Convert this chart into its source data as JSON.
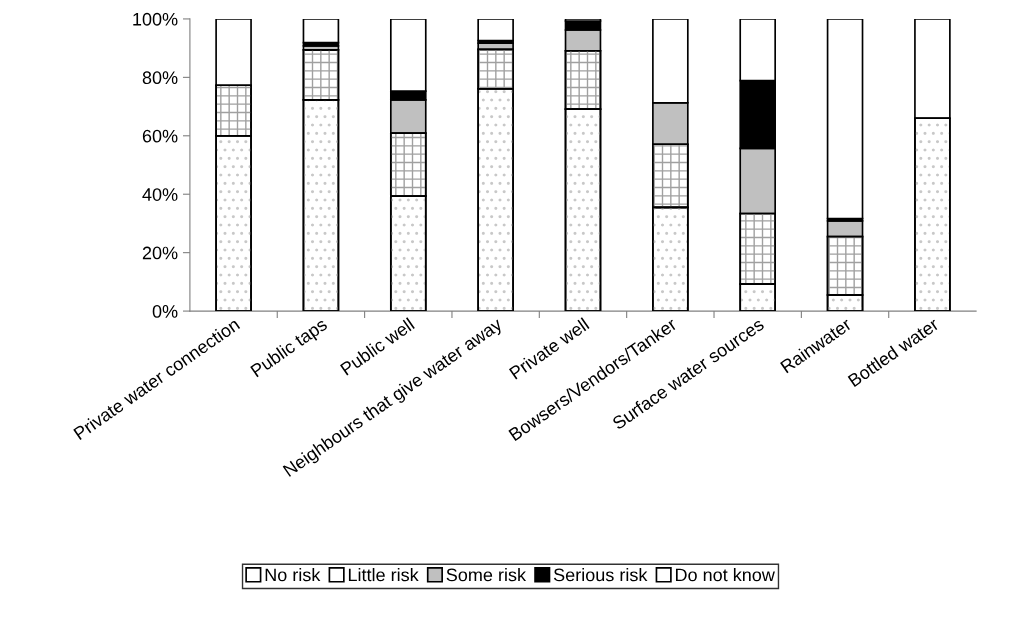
{
  "chart_data": {
    "type": "bar",
    "stacked": true,
    "categories": [
      "Private water connection",
      "Public taps",
      "Public well",
      "Neighbours that give water away",
      "Private well",
      "Bowsers/Vendors/Tanker",
      "Surface water sources",
      "Rainwater",
      "Bottled water"
    ],
    "series": [
      {
        "name": "No risk",
        "color": "#ffffff",
        "values": [
          60,
          72.3,
          39.4,
          76.1,
          69.1,
          35.5,
          9.2,
          5.5,
          66
        ]
      },
      {
        "name": "Little risk",
        "color": "#ffffff",
        "values": [
          17.3,
          17.1,
          21.5,
          13.5,
          20.0,
          21.6,
          24.2,
          20.0,
          0
        ]
      },
      {
        "name": "Some risk",
        "color": "#c0c0c0",
        "values": [
          0,
          1.4,
          11.4,
          2.1,
          7.1,
          14.2,
          22.3,
          5.4,
          0
        ]
      },
      {
        "name": "Serious risk",
        "color": "#000000",
        "values": [
          0,
          1.1,
          3.0,
          0.9,
          3.1,
          0,
          23.2,
          0.8,
          0
        ]
      },
      {
        "name": "Do not know",
        "color": "#ffffff",
        "values": [
          22.7,
          8.1,
          24.7,
          7.4,
          0.7,
          28.7,
          21.1,
          68.3,
          34
        ]
      }
    ],
    "ylim": [
      0,
      100
    ],
    "yticks": [
      {
        "value": 0,
        "label": "0%"
      },
      {
        "value": 20,
        "label": "20%"
      },
      {
        "value": 40,
        "label": "40%"
      },
      {
        "value": 60,
        "label": "60%"
      },
      {
        "value": 80,
        "label": "80%"
      },
      {
        "value": 100,
        "label": "100%"
      }
    ],
    "grid": false,
    "legend": "bottom"
  }
}
